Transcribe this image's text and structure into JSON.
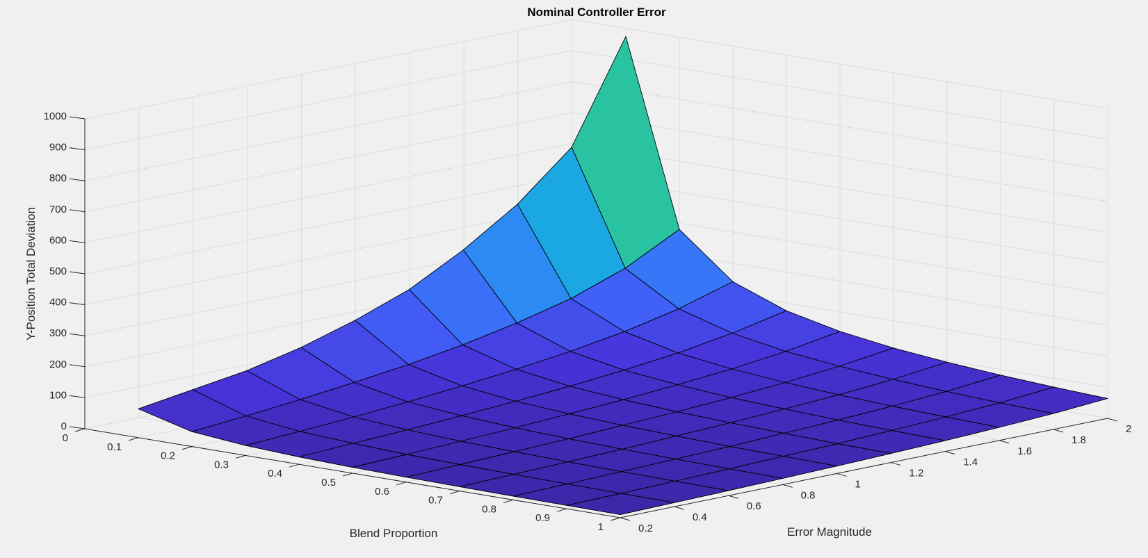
{
  "chart_data": {
    "type": "surface",
    "title": "Nominal Controller Error",
    "xlabel": "Blend Proportion",
    "ylabel": "Error Magnitude",
    "zlabel": "Y-Position Total Deviation",
    "xlim": [
      0,
      1
    ],
    "ylim": [
      0.2,
      2
    ],
    "zlim": [
      0,
      1000
    ],
    "x_ticks": [
      "0",
      "0.1",
      "0.2",
      "0.3",
      "0.4",
      "0.5",
      "0.6",
      "0.7",
      "0.8",
      "0.9",
      "1"
    ],
    "y_ticks": [
      "0.2",
      "0.4",
      "0.6",
      "0.8",
      "1",
      "1.2",
      "1.4",
      "1.6",
      "1.8",
      "2"
    ],
    "z_ticks": [
      "0",
      "100",
      "200",
      "300",
      "400",
      "500",
      "600",
      "700",
      "800",
      "900",
      "1000"
    ],
    "grid": true,
    "colormap": "parula",
    "x": [
      0.1,
      0.2,
      0.3,
      0.4,
      0.5,
      0.6,
      0.7,
      0.8,
      0.9,
      1.0
    ],
    "y": [
      0.2,
      0.4,
      0.6,
      0.8,
      1.0,
      1.2,
      1.4,
      1.6,
      1.8,
      2.0
    ],
    "z_by_x": [
      [
        93,
        119,
        145,
        184,
        236,
        300,
        392,
        504,
        652,
        974
      ],
      [
        48,
        63,
        80,
        100,
        122,
        150,
        185,
        228,
        290,
        380
      ],
      [
        32,
        42,
        53,
        66,
        82,
        100,
        122,
        150,
        188,
        240
      ],
      [
        24,
        32,
        40,
        50,
        61,
        74,
        90,
        110,
        138,
        175
      ],
      [
        19,
        25,
        32,
        40,
        49,
        59,
        72,
        87,
        108,
        137
      ],
      [
        16,
        21,
        27,
        33,
        41,
        49,
        59,
        72,
        89,
        112
      ],
      [
        14,
        18,
        23,
        28,
        35,
        42,
        51,
        61,
        75,
        95
      ],
      [
        12,
        16,
        20,
        25,
        30,
        37,
        44,
        53,
        65,
        82
      ],
      [
        11,
        14,
        18,
        22,
        27,
        32,
        39,
        47,
        57,
        72
      ],
      [
        10,
        13,
        16,
        20,
        24,
        29,
        35,
        42,
        51,
        64
      ]
    ]
  }
}
